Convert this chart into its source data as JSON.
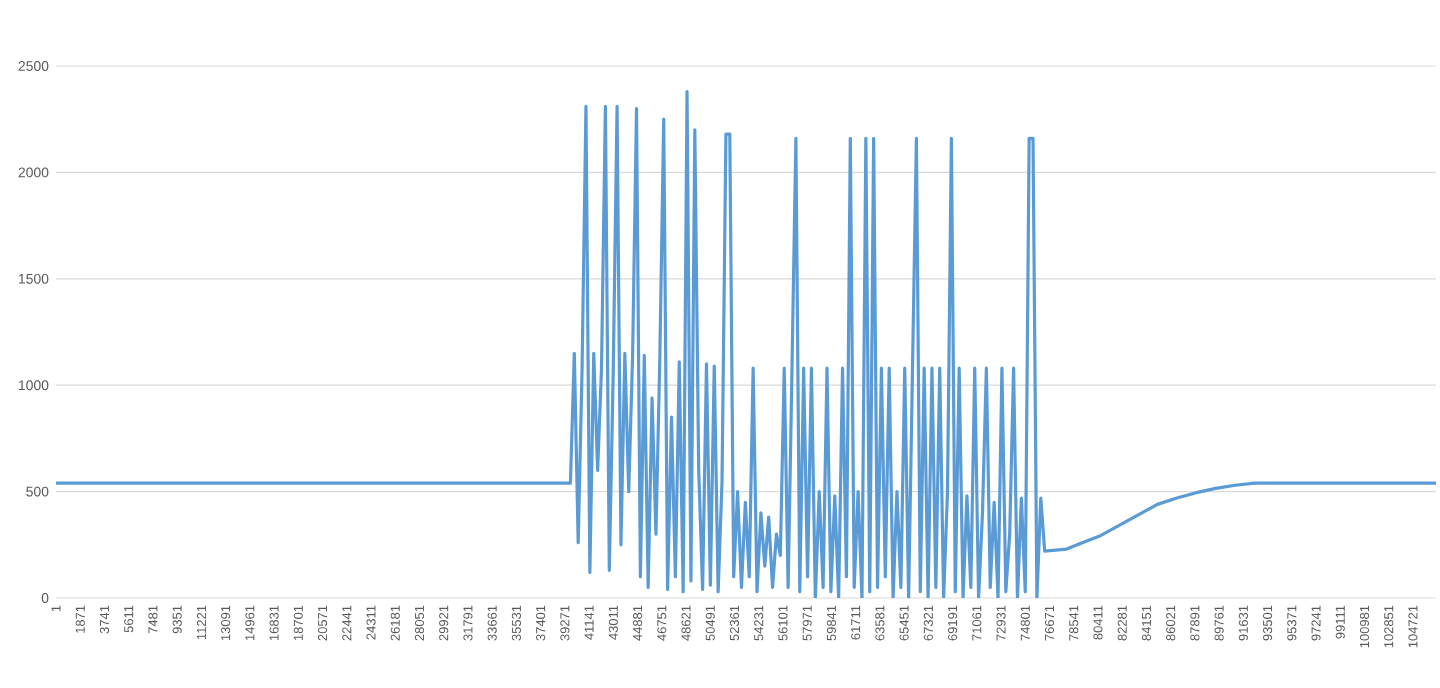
{
  "chart_data": {
    "type": "line",
    "xlim": [
      1,
      106500
    ],
    "ylim": [
      0,
      2500
    ],
    "xticks": [
      1,
      1871,
      3741,
      5611,
      7481,
      9351,
      11221,
      13091,
      14961,
      16831,
      18701,
      20571,
      22441,
      24311,
      26181,
      28051,
      29921,
      31791,
      33661,
      35531,
      37401,
      39271,
      41141,
      43011,
      44881,
      46751,
      48621,
      50491,
      52361,
      54231,
      56101,
      57971,
      59841,
      61711,
      63581,
      65451,
      67321,
      69191,
      71061,
      72931,
      74801,
      76671,
      78541,
      80411,
      82281,
      84151,
      86021,
      87891,
      89761,
      91631,
      93501,
      95371,
      97241,
      99111,
      100981,
      102851,
      104721
    ],
    "yticks": [
      0,
      500,
      1000,
      1500,
      2000,
      2500
    ],
    "grid": "y",
    "series": [
      {
        "color": "#5b9bd5",
        "x": [
          1,
          39700,
          40000,
          40300,
          40600,
          40900,
          41200,
          41500,
          41800,
          42100,
          42400,
          42700,
          43000,
          43300,
          43600,
          43900,
          44200,
          44500,
          44800,
          45100,
          45400,
          45700,
          46000,
          46300,
          46600,
          46900,
          47200,
          47500,
          47800,
          48100,
          48400,
          48700,
          49000,
          49300,
          49600,
          49900,
          50200,
          50500,
          50800,
          51100,
          51400,
          51700,
          52000,
          52300,
          52600,
          52900,
          53200,
          53500,
          53800,
          54100,
          54400,
          54700,
          55000,
          55300,
          55600,
          55900,
          56200,
          56500,
          56800,
          57100,
          57400,
          57700,
          58000,
          58300,
          58600,
          58900,
          59200,
          59500,
          59800,
          60100,
          60400,
          60700,
          61000,
          61300,
          61600,
          61900,
          62200,
          62500,
          62800,
          63100,
          63400,
          63700,
          64000,
          64300,
          64600,
          64900,
          65200,
          65500,
          65800,
          66100,
          66400,
          66700,
          67000,
          67300,
          67600,
          67900,
          68200,
          68500,
          68800,
          69100,
          69400,
          69700,
          70000,
          70300,
          70600,
          70900,
          71200,
          71500,
          71800,
          72100,
          72400,
          72700,
          73000,
          73300,
          73600,
          73900,
          74200,
          74500,
          74800,
          75100,
          75400,
          75700,
          76000,
          76300,
          78000,
          79000,
          80500,
          82000,
          83500,
          85000,
          86500,
          88000,
          89500,
          91000,
          92500,
          106500
        ],
        "values": [
          540,
          540,
          1150,
          260,
          1080,
          2310,
          120,
          1150,
          600,
          1080,
          2310,
          130,
          1050,
          2310,
          250,
          1150,
          500,
          1140,
          2300,
          100,
          1140,
          50,
          940,
          300,
          1130,
          2250,
          40,
          850,
          100,
          1110,
          30,
          2380,
          80,
          2200,
          600,
          40,
          1100,
          60,
          1090,
          30,
          550,
          2180,
          2180,
          100,
          500,
          50,
          450,
          100,
          1080,
          30,
          400,
          150,
          380,
          50,
          300,
          200,
          1080,
          50,
          1080,
          2160,
          30,
          1080,
          100,
          1080,
          0,
          500,
          50,
          1080,
          30,
          480,
          0,
          1080,
          100,
          2160,
          50,
          500,
          0,
          2160,
          30,
          2160,
          50,
          1080,
          100,
          1080,
          0,
          500,
          50,
          1080,
          0,
          1080,
          2160,
          30,
          1080,
          0,
          1080,
          50,
          1080,
          0,
          500,
          2160,
          30,
          1080,
          0,
          480,
          50,
          1080,
          0,
          400,
          1080,
          50,
          450,
          0,
          1080,
          30,
          300,
          1080,
          0,
          470,
          30,
          2160,
          2160,
          0,
          470,
          220,
          230,
          255,
          290,
          340,
          390,
          440,
          470,
          495,
          515,
          530,
          540,
          540
        ]
      }
    ]
  }
}
